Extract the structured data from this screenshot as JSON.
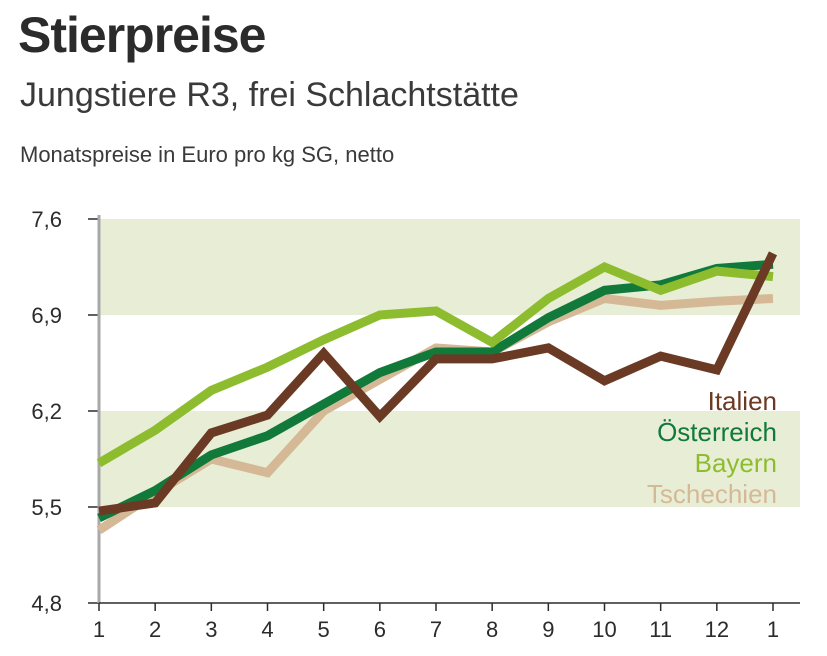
{
  "header": {
    "title": "Stierpreise",
    "subtitle": "Jungstiere R3, frei Schlachtstätte",
    "unit": "Monatspreise in Euro pro kg SG, netto"
  },
  "chart_data": {
    "type": "line",
    "title": "Stierpreise",
    "subtitle": "Jungstiere R3, frei Schlachtstätte",
    "ylabel": "Monatspreise in Euro pro kg SG, netto",
    "xlabel": "",
    "categories": [
      "1",
      "2",
      "3",
      "4",
      "5",
      "6",
      "7",
      "8",
      "9",
      "10",
      "11",
      "12",
      "1"
    ],
    "y_ticks": [
      "7,6",
      "6,9",
      "6,2",
      "5,5",
      "4,8"
    ],
    "y_tick_values": [
      7.6,
      6.9,
      6.2,
      5.5,
      4.8
    ],
    "ylim": [
      4.8,
      7.6
    ],
    "bands": [
      [
        6.9,
        7.6
      ],
      [
        5.5,
        6.2
      ]
    ],
    "band_color": "#e8eed6",
    "legend_position": "right",
    "series": [
      {
        "name": "Tschechien",
        "color": "#d5b997",
        "values": [
          5.33,
          5.6,
          5.85,
          5.75,
          6.2,
          6.43,
          6.66,
          6.63,
          6.85,
          7.02,
          6.97,
          7.0,
          7.02
        ]
      },
      {
        "name": "Österreich",
        "color": "#11793a",
        "values": [
          5.42,
          5.62,
          5.88,
          6.02,
          6.25,
          6.48,
          6.63,
          6.63,
          6.88,
          7.08,
          7.12,
          7.24,
          7.27
        ]
      },
      {
        "name": "Bayern",
        "color": "#8dbd2e",
        "values": [
          5.82,
          6.06,
          6.35,
          6.52,
          6.72,
          6.9,
          6.93,
          6.7,
          7.02,
          7.25,
          7.08,
          7.22,
          7.18
        ]
      },
      {
        "name": "Italien",
        "color": "#6b3a24",
        "values": [
          5.47,
          5.53,
          6.04,
          6.17,
          6.62,
          6.16,
          6.58,
          6.58,
          6.66,
          6.42,
          6.6,
          6.5,
          7.35
        ]
      }
    ],
    "legend": [
      "Italien",
      "Österreich",
      "Bayern",
      "Tschechien"
    ]
  }
}
